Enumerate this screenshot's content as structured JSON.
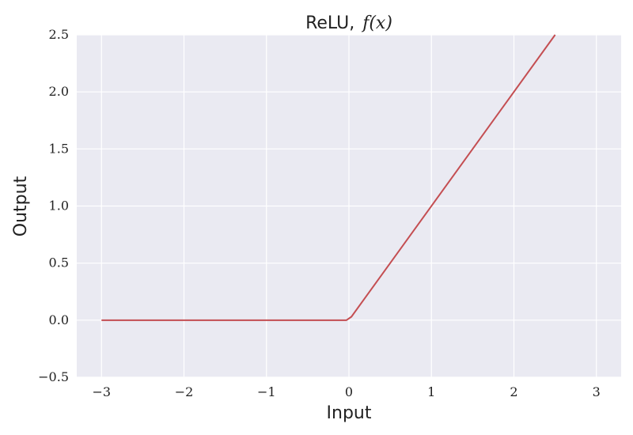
{
  "chart_data": {
    "type": "line",
    "title": "ReLU,",
    "title_math": "f(x)",
    "xlabel": "Input",
    "ylabel": "Output",
    "xlim": [
      -3.3,
      3.3
    ],
    "ylim": [
      -0.5,
      2.5
    ],
    "x_ticks": [
      -3,
      -2,
      -1,
      0,
      1,
      2,
      3
    ],
    "x_tick_labels": [
      "−3",
      "−2",
      "−1",
      "0",
      "1",
      "2",
      "3"
    ],
    "y_ticks": [
      -0.5,
      0.0,
      0.5,
      1.0,
      1.5,
      2.0,
      2.5
    ],
    "y_tick_labels": [
      "−0.5",
      "0.0",
      "0.5",
      "1.0",
      "1.5",
      "2.0",
      "2.5"
    ],
    "grid": true,
    "background_color": "#eaeaf2",
    "series": [
      {
        "color": "#c44e52",
        "x": [
          -3.0,
          -0.03,
          0.03,
          2.5
        ],
        "y": [
          0.0,
          0.0,
          0.03,
          2.5
        ]
      }
    ]
  }
}
